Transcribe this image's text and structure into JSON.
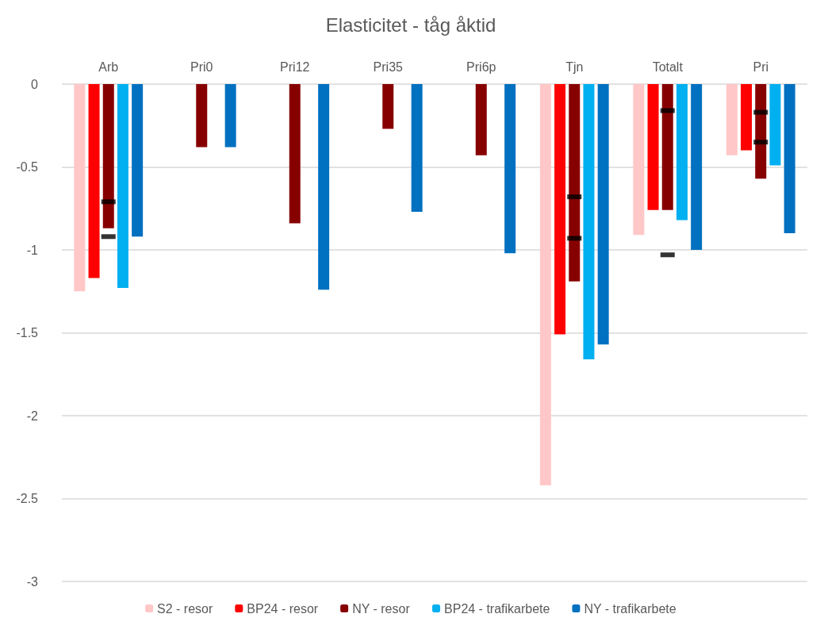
{
  "chart_data": {
    "type": "bar",
    "title": "Elasticitet - tåg åktid",
    "categories": [
      "Arb",
      "Pri0",
      "Pri12",
      "Pri35",
      "Pri6p",
      "Tjn",
      "Totalt",
      "Pri"
    ],
    "ylim": [
      -3,
      0
    ],
    "yticks": [
      -3,
      -2.5,
      -2,
      -1.5,
      -1,
      -0.5,
      0
    ],
    "grid": "y",
    "legend": "bottom",
    "series": [
      {
        "name": "S2 - resor",
        "color": "#ffc7c7",
        "values": [
          -1.25,
          null,
          null,
          null,
          null,
          -2.42,
          -0.91,
          -0.43
        ]
      },
      {
        "name": "BP24 - resor",
        "color": "#ff0000",
        "values": [
          -1.17,
          null,
          null,
          null,
          null,
          -1.51,
          -0.76,
          -0.4
        ]
      },
      {
        "name": "NY - resor",
        "color": "#870000",
        "values": [
          -0.87,
          -0.38,
          -0.84,
          -0.27,
          -0.43,
          -1.19,
          -0.76,
          -0.57
        ]
      },
      {
        "name": "BP24 - trafikarbete",
        "color": "#00b0f0",
        "values": [
          -1.23,
          null,
          null,
          null,
          null,
          -1.66,
          -0.82,
          -0.49
        ]
      },
      {
        "name": "NY - trafikarbete",
        "color": "#0070c0",
        "values": [
          -0.92,
          -0.38,
          -1.24,
          -0.77,
          -1.02,
          -1.57,
          -1.0,
          -0.9
        ]
      },
      {
        "type": "scatter",
        "color": "#000000",
        "x": [
          "Arb",
          "Tjn",
          "Totalt",
          "Pri"
        ],
        "values": [
          -0.71,
          -0.68,
          -0.16,
          -0.17
        ]
      },
      {
        "type": "scatter",
        "color": "#000000",
        "x": [
          "Arb",
          "Tjn",
          "Totalt",
          "Pri"
        ],
        "values": [
          -0.92,
          -0.93,
          -1.03,
          -0.35
        ]
      }
    ]
  }
}
